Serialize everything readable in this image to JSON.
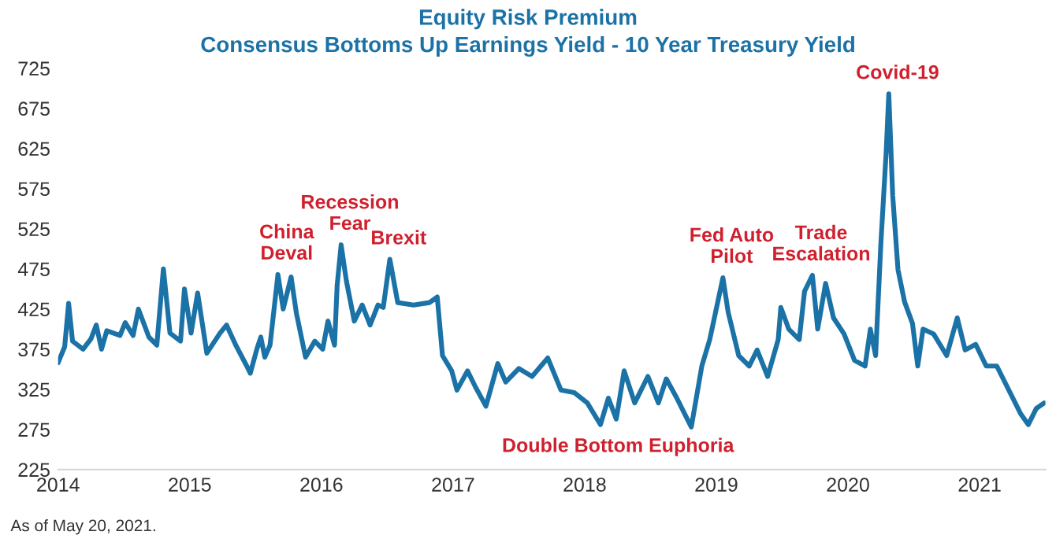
{
  "chart_data": {
    "type": "line",
    "title": "Equity Risk Premium",
    "subtitle": "Consensus Bottoms Up Earnings Yield - 10 Year Treasury Yield",
    "x": [
      2014.0,
      2014.05,
      2014.08,
      2014.11,
      2014.19,
      2014.25,
      2014.29,
      2014.33,
      2014.37,
      2014.47,
      2014.51,
      2014.57,
      2014.61,
      2014.69,
      2014.75,
      2014.8,
      2014.85,
      2014.93,
      2014.96,
      2015.01,
      2015.06,
      2015.13,
      2015.23,
      2015.28,
      2015.35,
      2015.43,
      2015.46,
      2015.51,
      2015.54,
      2015.57,
      2015.61,
      2015.67,
      2015.71,
      2015.77,
      2015.81,
      2015.88,
      2015.95,
      2016.01,
      2016.05,
      2016.1,
      2016.12,
      2016.15,
      2016.19,
      2016.25,
      2016.31,
      2016.37,
      2016.43,
      2016.47,
      2016.52,
      2016.58,
      2016.7,
      2016.82,
      2016.88,
      2016.92,
      2016.99,
      2017.03,
      2017.11,
      2017.17,
      2017.25,
      2017.34,
      2017.4,
      2017.5,
      2017.6,
      2017.72,
      2017.82,
      2017.92,
      2018.02,
      2018.12,
      2018.18,
      2018.24,
      2018.3,
      2018.38,
      2018.48,
      2018.56,
      2018.62,
      2018.7,
      2018.81,
      2018.89,
      2018.95,
      2019.05,
      2019.09,
      2019.17,
      2019.25,
      2019.31,
      2019.39,
      2019.47,
      2019.49,
      2019.55,
      2019.63,
      2019.67,
      2019.73,
      2019.77,
      2019.83,
      2019.89,
      2019.97,
      2020.05,
      2020.13,
      2020.17,
      2020.21,
      2020.25,
      2020.29,
      2020.31,
      2020.34,
      2020.38,
      2020.43,
      2020.49,
      2020.53,
      2020.57,
      2020.65,
      2020.75,
      2020.83,
      2020.89,
      2020.97,
      2021.05,
      2021.13,
      2021.21,
      2021.31,
      2021.37,
      2021.43,
      2021.49
    ],
    "series": [
      {
        "color": "#1b72a6",
        "values": [
          358,
          378,
          432,
          385,
          375,
          388,
          405,
          375,
          398,
          392,
          408,
          392,
          425,
          390,
          380,
          475,
          395,
          385,
          450,
          395,
          445,
          370,
          395,
          405,
          380,
          355,
          345,
          375,
          390,
          365,
          380,
          468,
          425,
          465,
          420,
          365,
          385,
          375,
          410,
          380,
          455,
          505,
          460,
          410,
          430,
          405,
          430,
          427,
          487,
          433,
          430,
          433,
          440,
          367,
          348,
          324,
          348,
          328,
          304,
          357,
          334,
          351,
          341,
          364,
          324,
          321,
          308,
          281,
          314,
          288,
          348,
          308,
          341,
          308,
          338,
          314,
          278,
          354,
          387,
          464,
          421,
          367,
          354,
          374,
          341,
          387,
          427,
          400,
          387,
          447,
          467,
          400,
          457,
          414,
          394,
          361,
          354,
          400,
          367,
          507,
          620,
          693,
          566,
          474,
          434,
          407,
          354,
          400,
          394,
          367,
          414,
          374,
          381,
          354,
          354,
          328,
          295,
          281,
          301,
          308
        ]
      }
    ],
    "xlim": [
      2014,
      2021.5
    ],
    "xticks": [
      2014,
      2015,
      2016,
      2017,
      2018,
      2019,
      2020,
      2021
    ],
    "ylim": [
      225,
      725
    ],
    "yticks": [
      225,
      275,
      325,
      375,
      425,
      475,
      525,
      575,
      625,
      675,
      725
    ],
    "grid": false,
    "legend": false,
    "annotations": [
      {
        "text": "China\nDeval",
        "x": 2015.67,
        "y": 468
      },
      {
        "text": "Recession\nFear",
        "x": 2016.15,
        "y": 505
      },
      {
        "text": "Brexit",
        "x": 2016.52,
        "y": 487
      },
      {
        "text": "Double Bottom Euphoria",
        "x": 2018.12,
        "y": 281
      },
      {
        "text": "Fed Auto\nPilot",
        "x": 2019.05,
        "y": 464
      },
      {
        "text": "Trade\nEscalation",
        "x": 2019.73,
        "y": 467
      },
      {
        "text": "Covid-19",
        "x": 2020.31,
        "y": 693
      },
      "As of May 20, 2021."
    ]
  }
}
